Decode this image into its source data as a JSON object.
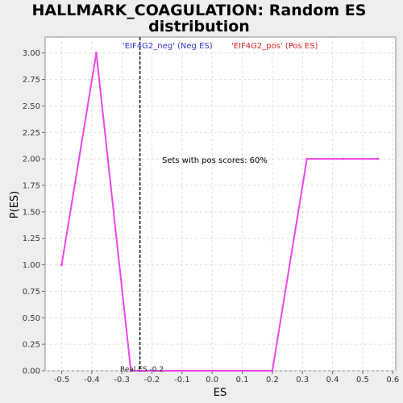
{
  "chart_data": {
    "type": "line",
    "title_lines": [
      "HALLMARK_COAGULATION: Random ES",
      "distribution"
    ],
    "xlabel": "ES",
    "ylabel": "P(ES)",
    "xlim": [
      -0.555,
      0.61
    ],
    "ylim": [
      0,
      3.15
    ],
    "xticks": [
      -0.5,
      -0.4,
      -0.3,
      -0.2,
      -0.1,
      0.0,
      0.1,
      0.2,
      0.3,
      0.4,
      0.5,
      0.6
    ],
    "xtick_labels": [
      "-0.5",
      "-0.4",
      "-0.3",
      "-0.2",
      "-0.1",
      "0.0",
      "0.1",
      "0.2",
      "0.3",
      "0.4",
      "0.5",
      "0.6"
    ],
    "yticks": [
      0,
      0.25,
      0.5,
      0.75,
      1.0,
      1.25,
      1.5,
      1.75,
      2.0,
      2.25,
      2.5,
      2.75,
      3.0
    ],
    "ytick_labels": [
      "0.00",
      "0.25",
      "0.50",
      "0.75",
      "1.00",
      "1.25",
      "1.50",
      "1.75",
      "2.00",
      "2.25",
      "2.50",
      "2.75",
      "3.00"
    ],
    "grid": true,
    "series": [
      {
        "color": "#ee44ee",
        "x": [
          -0.5,
          -0.385,
          -0.27,
          0.2,
          0.315,
          0.435,
          0.55
        ],
        "y": [
          1.0,
          3.0,
          0.0,
          0.0,
          2.0,
          2.0,
          2.0
        ]
      }
    ],
    "real_es": {
      "value": -0.24,
      "label": "Real ES -0.2"
    },
    "legend": {
      "neg_label": "'EIF4G2_neg' (Neg ES)",
      "pos_label": "'EIF4G2_pos' (Pos ES)",
      "neg_color": "#3333cc",
      "pos_color": "#dd2222",
      "placement": "top"
    },
    "annotation": "Sets with pos scores: 60%"
  }
}
